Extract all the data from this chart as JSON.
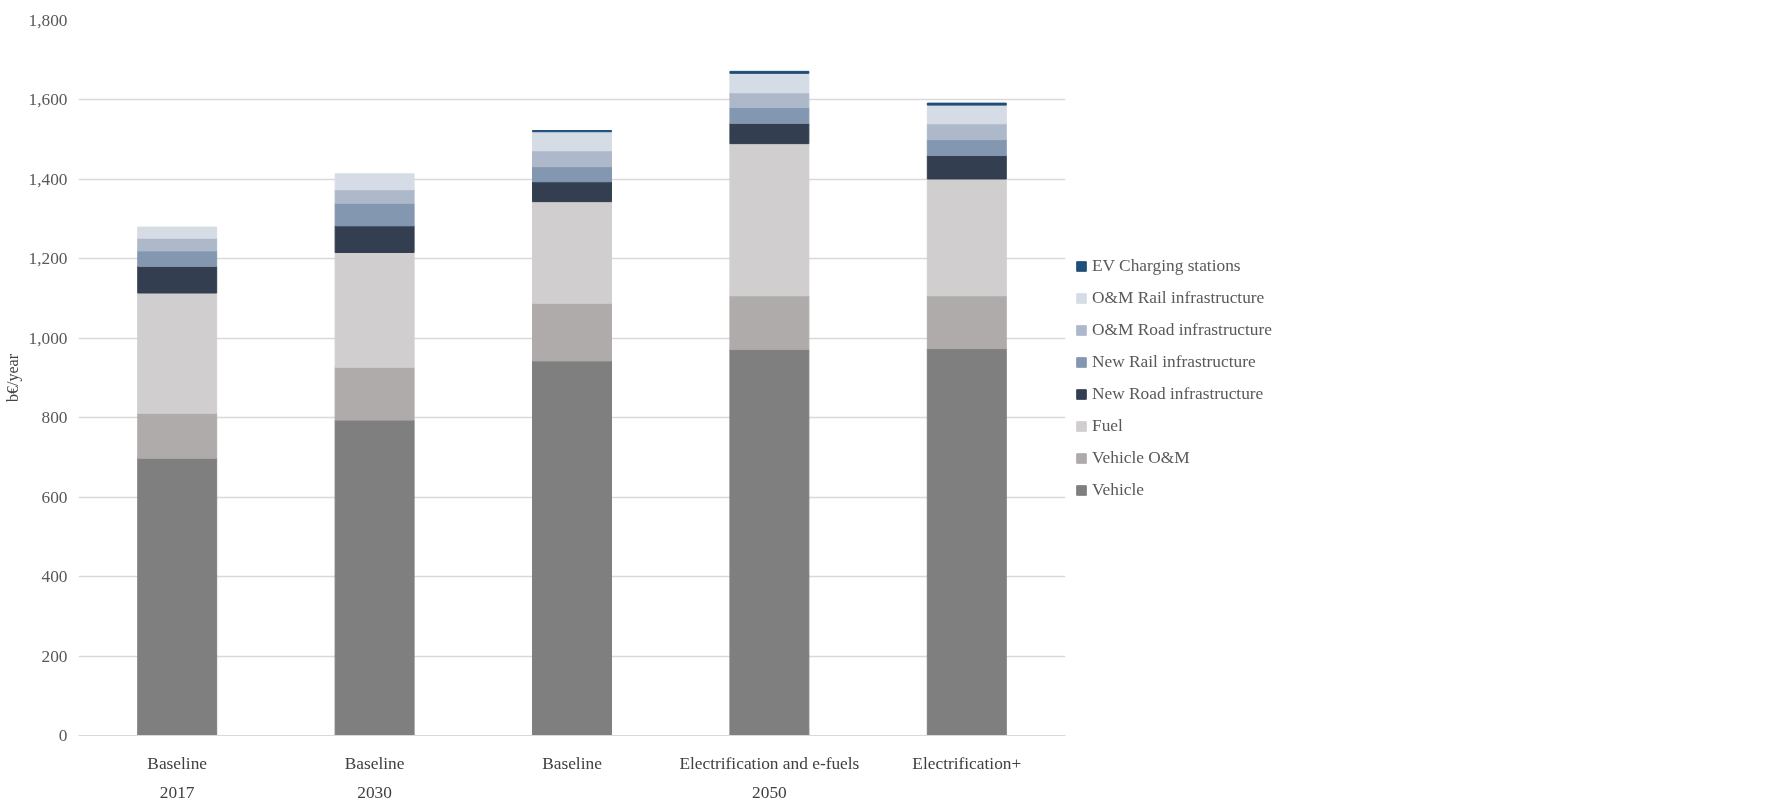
{
  "chart_data": {
    "type": "bar",
    "stacked": true,
    "ylabel": "b€/year",
    "categories": [
      "Baseline",
      "Baseline",
      "Baseline",
      "Electrification and e-fuels",
      "Electrification+"
    ],
    "series": [
      {
        "name": "Vehicle",
        "color": "#7f7f7f",
        "values": [
          698,
          794,
          943,
          972,
          974
        ]
      },
      {
        "name": "Vehicle O&M",
        "color": "#afabab",
        "values": [
          113,
          133,
          145,
          135,
          133
        ]
      },
      {
        "name": "Fuel",
        "color": "#d0cece",
        "values": [
          303,
          289,
          256,
          383,
          294
        ]
      },
      {
        "name": "New Road infrastructure",
        "color": "#333f50",
        "values": [
          67,
          67,
          50,
          51,
          59
        ]
      },
      {
        "name": "New Rail infrastructure",
        "color": "#8497b0",
        "values": [
          39,
          57,
          38,
          40,
          40
        ]
      },
      {
        "name": "O&M Road infrastructure",
        "color": "#adb9ca",
        "values": [
          32,
          34,
          40,
          37,
          40
        ]
      },
      {
        "name": "O&M Rail infrastructure",
        "color": "#d6dce5",
        "values": [
          28,
          40,
          48,
          49,
          47
        ]
      },
      {
        "name": "EV Charging stations",
        "color": "#1f4e79",
        "values": [
          null,
          null,
          3,
          5,
          5
        ]
      }
    ],
    "annotations": [
      "2017",
      "2030",
      "2050"
    ],
    "ylim": [
      0,
      1800
    ],
    "yticks": [
      0,
      200,
      400,
      600,
      800,
      {
        "value": 1000,
        "label": "1,000"
      },
      {
        "value": 1200,
        "label": "1,200"
      },
      {
        "value": 1400,
        "label": "1,400"
      },
      {
        "value": 1600,
        "label": "1,600"
      },
      {
        "value": 1800,
        "label": "1,800"
      }
    ],
    "grid": "y",
    "legend": "right"
  }
}
